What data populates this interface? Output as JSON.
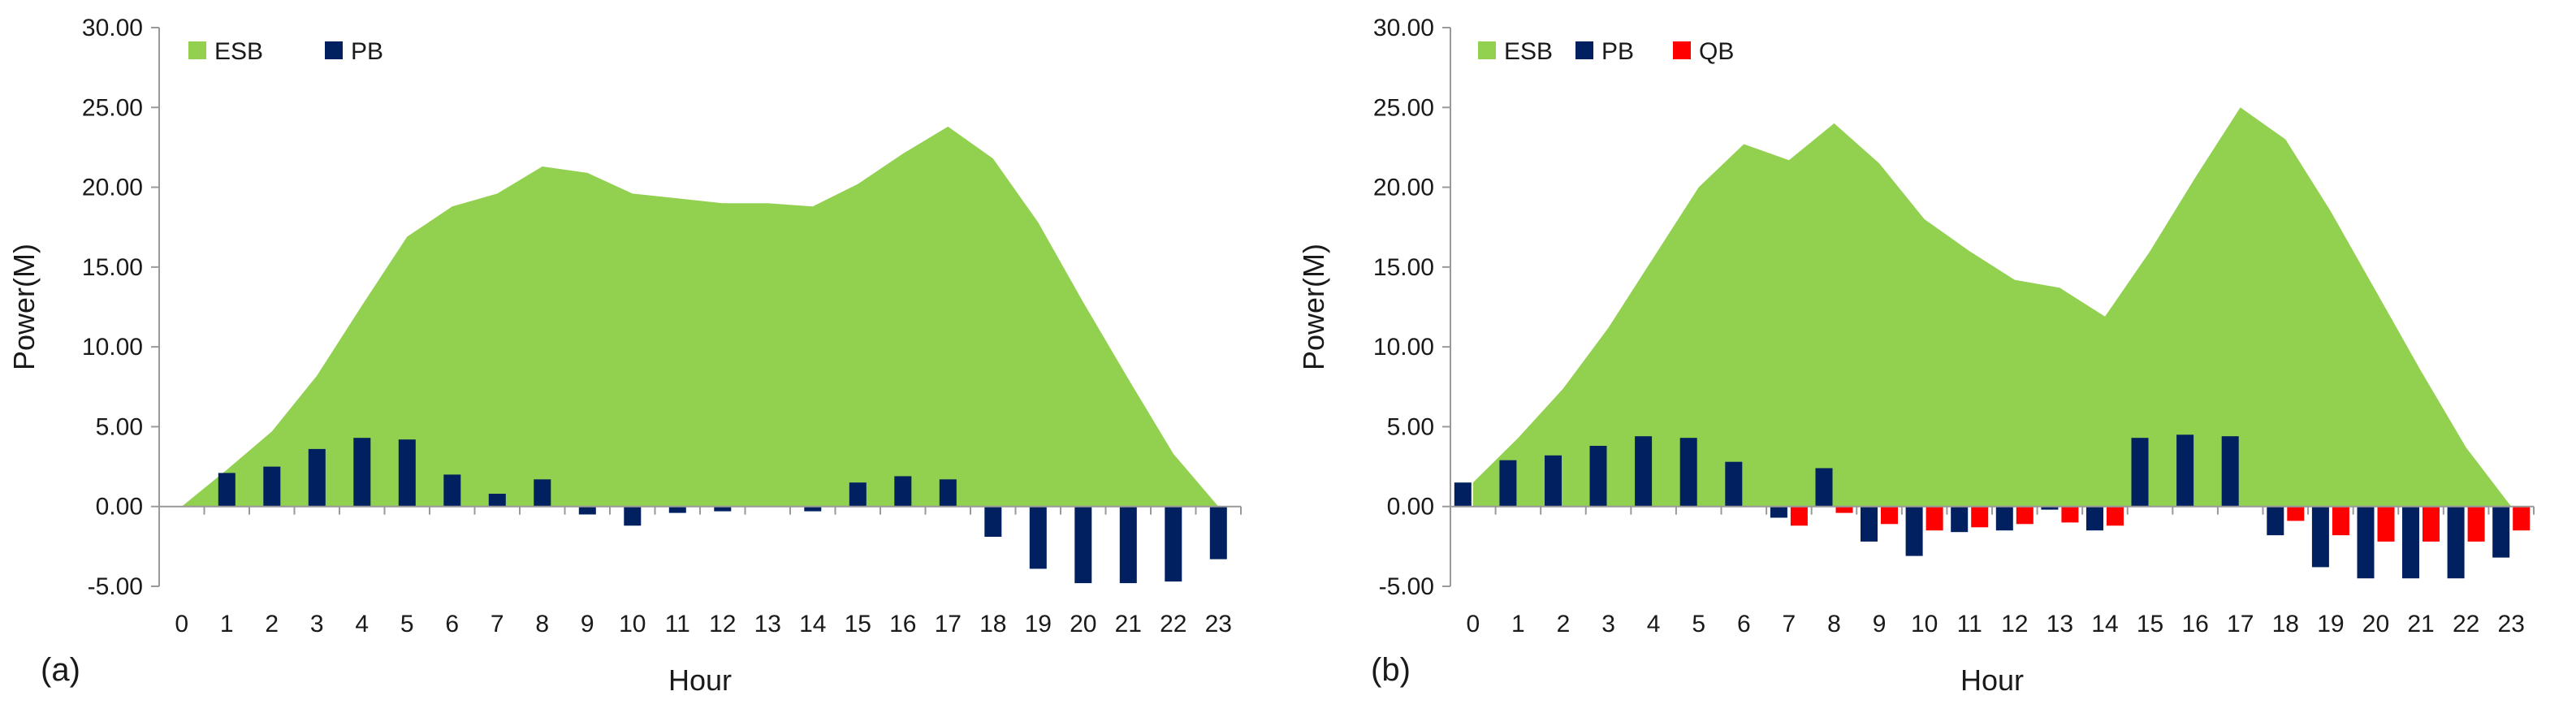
{
  "chart_data": [
    {
      "type": "area+bar",
      "panel_label": "(a)",
      "xlabel": "Hour",
      "ylabel": "Power(M)",
      "ylim": [
        -5,
        30
      ],
      "yticks": [
        "30.00",
        "25.00",
        "20.00",
        "15.00",
        "10.00",
        "5.00",
        "0.00",
        "-5.00"
      ],
      "categories": [
        "0",
        "1",
        "2",
        "3",
        "4",
        "5",
        "6",
        "7",
        "8",
        "9",
        "10",
        "11",
        "12",
        "13",
        "14",
        "15",
        "16",
        "17",
        "18",
        "19",
        "20",
        "21",
        "22",
        "23"
      ],
      "legend_position": "top-left",
      "series": [
        {
          "name": "ESB",
          "kind": "area",
          "color": "#92d050",
          "values": [
            0,
            2.3,
            4.7,
            8.2,
            12.6,
            16.9,
            18.8,
            19.6,
            21.3,
            20.9,
            19.6,
            19.3,
            19.0,
            19.0,
            18.8,
            20.2,
            22.1,
            23.8,
            21.8,
            17.8,
            12.8,
            8.0,
            3.3,
            0
          ]
        },
        {
          "name": "PB",
          "kind": "bar",
          "color": "#002060",
          "values": [
            0,
            2.1,
            2.5,
            3.6,
            4.3,
            4.2,
            2.0,
            0.8,
            1.7,
            -0.5,
            -1.2,
            -0.4,
            -0.3,
            0,
            -0.3,
            1.5,
            1.9,
            1.7,
            -1.9,
            -3.9,
            -4.8,
            -4.8,
            -4.7,
            -3.3
          ]
        }
      ]
    },
    {
      "type": "area+bar",
      "panel_label": "(b)",
      "xlabel": "Hour",
      "ylabel": "Power(M)",
      "ylim": [
        -5,
        30
      ],
      "yticks": [
        "30.00",
        "25.00",
        "20.00",
        "15.00",
        "10.00",
        "5.00",
        "0.00",
        "-5.00"
      ],
      "categories": [
        "0",
        "1",
        "2",
        "3",
        "4",
        "5",
        "6",
        "7",
        "8",
        "9",
        "10",
        "11",
        "12",
        "13",
        "14",
        "15",
        "16",
        "17",
        "18",
        "19",
        "20",
        "21",
        "22",
        "23"
      ],
      "legend_position": "top-left",
      "series": [
        {
          "name": "ESB",
          "kind": "area",
          "color": "#92d050",
          "values": [
            1.5,
            4.3,
            7.4,
            11.2,
            15.6,
            20.0,
            22.7,
            21.7,
            24.0,
            21.5,
            18.0,
            16.0,
            14.2,
            13.7,
            11.9,
            16.0,
            20.6,
            25.0,
            23.0,
            18.5,
            13.5,
            8.5,
            3.7,
            0
          ]
        },
        {
          "name": "PB",
          "kind": "bar",
          "color": "#002060",
          "values": [
            1.5,
            2.9,
            3.2,
            3.8,
            4.4,
            4.3,
            2.8,
            -0.7,
            2.4,
            -2.2,
            -3.1,
            -1.6,
            -1.5,
            -0.2,
            -1.5,
            4.3,
            4.5,
            4.4,
            -1.8,
            -3.8,
            -4.5,
            -4.5,
            -4.5,
            -3.2
          ]
        },
        {
          "name": "QB",
          "kind": "bar",
          "color": "#ff0000",
          "values": [
            0,
            0,
            0,
            0,
            0,
            0,
            0,
            -1.2,
            -0.4,
            -1.1,
            -1.5,
            -1.3,
            -1.1,
            -1.0,
            -1.2,
            0,
            0,
            0,
            -0.9,
            -1.8,
            -2.2,
            -2.2,
            -2.2,
            -1.5
          ]
        }
      ]
    }
  ]
}
